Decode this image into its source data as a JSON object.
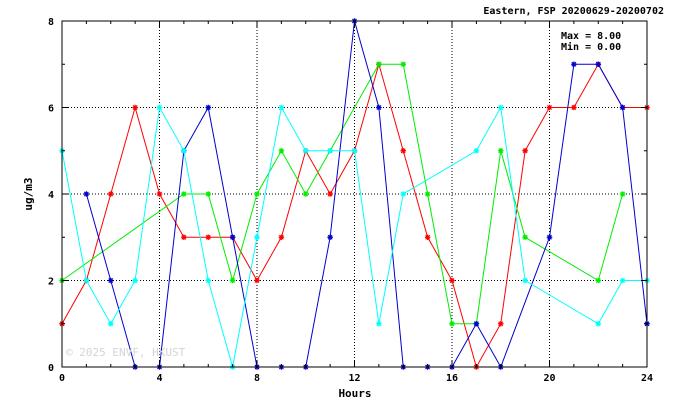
{
  "chart_data": {
    "type": "line",
    "title": "Eastern, FSP 20200629-20200702",
    "xlabel": "Hours",
    "ylabel": "ug/m3",
    "xlim": [
      0,
      24
    ],
    "ylim": [
      0,
      8
    ],
    "x_ticks": [
      0,
      4,
      8,
      12,
      16,
      20,
      24
    ],
    "y_ticks": [
      0,
      2,
      4,
      6,
      8
    ],
    "grid": true,
    "max_text": "Max = 8.00",
    "min_text": "Min = 0.00",
    "watermark": "© 2025 ENVF, HKUST",
    "series": [
      {
        "color": "#ff0000",
        "points": [
          [
            0,
            1
          ],
          [
            1,
            2
          ],
          [
            2,
            4
          ],
          [
            3,
            6
          ],
          [
            4,
            4
          ],
          [
            5,
            3
          ],
          [
            6,
            3
          ],
          [
            7,
            3
          ],
          [
            8,
            2
          ],
          [
            9,
            3
          ],
          [
            10,
            5
          ],
          [
            11,
            4
          ],
          [
            12,
            5
          ],
          [
            13,
            7
          ],
          [
            14,
            5
          ],
          [
            15,
            3
          ],
          [
            16,
            2
          ],
          [
            17,
            0
          ],
          [
            18,
            1
          ],
          [
            19,
            5
          ],
          [
            20,
            6
          ],
          [
            21,
            6
          ],
          [
            22,
            7
          ],
          [
            23,
            6
          ],
          [
            24,
            6
          ]
        ]
      },
      {
        "color": "#00ee00",
        "points": [
          [
            0,
            2
          ],
          [
            5,
            4
          ],
          [
            6,
            4
          ],
          [
            7,
            2
          ],
          [
            8,
            4
          ],
          [
            9,
            5
          ],
          [
            10,
            4
          ],
          [
            11,
            5
          ],
          [
            13,
            7
          ],
          [
            14,
            7
          ],
          [
            15,
            4
          ],
          [
            16,
            1
          ],
          [
            17,
            1
          ],
          [
            18,
            5
          ],
          [
            19,
            3
          ],
          [
            22,
            2
          ],
          [
            23,
            4
          ]
        ]
      },
      {
        "color": "#0000cc",
        "points": [
          [
            1,
            4
          ],
          [
            2,
            2
          ],
          [
            3,
            0
          ],
          [
            4,
            0
          ],
          [
            5,
            5
          ],
          [
            6,
            6
          ],
          [
            7,
            3
          ],
          [
            8,
            0
          ],
          [
            9,
            0
          ],
          [
            10,
            0
          ],
          [
            11,
            3
          ],
          [
            12,
            8
          ],
          [
            13,
            6
          ],
          [
            14,
            0
          ],
          [
            15,
            0
          ],
          [
            16,
            0
          ],
          [
            17,
            1
          ],
          [
            18,
            0
          ],
          [
            20,
            3
          ],
          [
            21,
            7
          ],
          [
            22,
            7
          ],
          [
            23,
            6
          ],
          [
            24,
            1
          ]
        ]
      },
      {
        "color": "#00ffff",
        "points": [
          [
            0,
            5
          ],
          [
            1,
            2
          ],
          [
            2,
            1
          ],
          [
            3,
            2
          ],
          [
            4,
            6
          ],
          [
            5,
            5
          ],
          [
            6,
            2
          ],
          [
            7,
            0
          ],
          [
            8,
            3
          ],
          [
            9,
            6
          ],
          [
            10,
            5
          ],
          [
            11,
            5
          ],
          [
            12,
            5
          ],
          [
            13,
            1
          ],
          [
            14,
            4
          ],
          [
            17,
            5
          ],
          [
            18,
            6
          ],
          [
            19,
            2
          ],
          [
            22,
            1
          ],
          [
            23,
            2
          ],
          [
            24,
            2
          ]
        ]
      }
    ]
  }
}
